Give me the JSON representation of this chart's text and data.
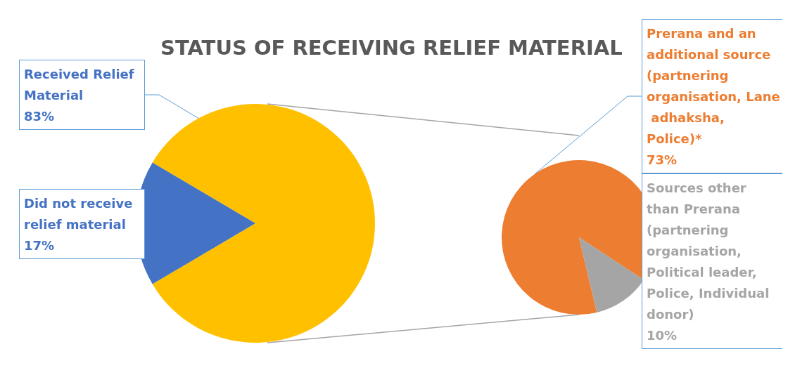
{
  "chart_data": [
    {
      "type": "pie",
      "title": "STATUS OF RECEIVING RELIEF MATERIAL",
      "categories": [
        "Received Relief Material",
        "Did not receive relief material"
      ],
      "values": [
        83,
        17
      ],
      "value_labels": [
        "83%",
        "17%"
      ],
      "colors": [
        "#ffc000",
        "#4472c4"
      ],
      "data_labels": true,
      "legend": false
    },
    {
      "type": "pie",
      "categories": [
        "Prerana and an additional source (partnering organisation, Lane adhaksha, Police)*",
        "Sources other than Prerana (partnering organisation, Political leader, Police, Individual donor)"
      ],
      "values": [
        73,
        10
      ],
      "value_labels": [
        "73%",
        "10%"
      ],
      "colors": [
        "#ed7d31",
        "#a5a5a5"
      ],
      "data_labels": true,
      "legend": false
    }
  ]
}
